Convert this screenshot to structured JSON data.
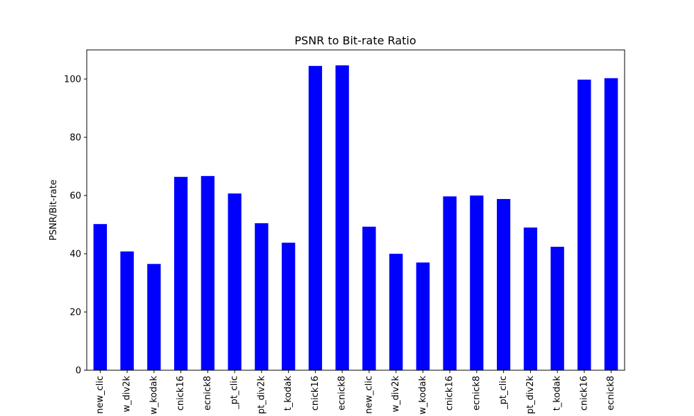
{
  "chart_data": {
    "type": "bar",
    "title": "PSNR to Bit-rate Ratio",
    "xlabel": "",
    "ylabel": "PSNR/Bit-rate",
    "ylim": [
      0,
      110
    ],
    "yticks": [
      0,
      20,
      40,
      60,
      80,
      100
    ],
    "grid": false,
    "bar_color": "#0000ff",
    "categories": [
      "new_clic",
      "w_div2k",
      "w_kodak",
      "cnick16",
      "ecnick8",
      "_pt_clic",
      "pt_div2k",
      "t_kodak",
      "cnick16",
      "ecnick8",
      "new_clic",
      "w_div2k",
      "w_kodak",
      "cnick16",
      "ecnick8",
      "_pt_clic",
      "pt_div2k",
      "t_kodak",
      "cnick16",
      "ecnick8"
    ],
    "values": [
      50.2,
      40.8,
      36.5,
      66.4,
      66.7,
      60.7,
      50.5,
      43.8,
      104.5,
      104.7,
      49.3,
      40.0,
      37.0,
      59.7,
      60.0,
      58.8,
      49.0,
      42.4,
      99.8,
      100.3
    ]
  }
}
